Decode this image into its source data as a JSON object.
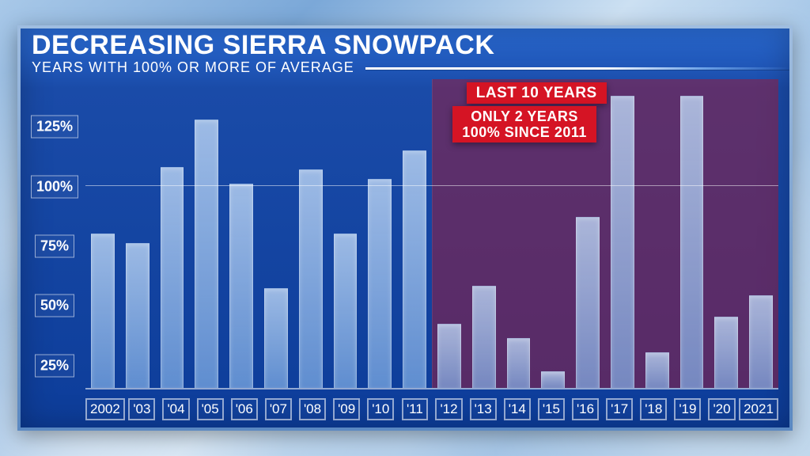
{
  "title": "DECREASING SIERRA SNOWPACK",
  "subtitle": "YEARS WITH 100% OR MORE OF AVERAGE",
  "chart": {
    "type": "bar",
    "ylim": [
      15,
      145
    ],
    "yticks": [
      25,
      50,
      75,
      100,
      125
    ],
    "ytick_labels": [
      "25%",
      "50%",
      "75%",
      "100%",
      "125%"
    ],
    "reference_line": 100,
    "x_labels": [
      "2002",
      "'03",
      "'04",
      "'05",
      "'06",
      "'07",
      "'08",
      "'09",
      "'10",
      "'11",
      "'12",
      "'13",
      "'14",
      "'15",
      "'16",
      "'17",
      "'18",
      "'19",
      "'20",
      "2021"
    ],
    "values": [
      80,
      76,
      108,
      128,
      101,
      57,
      107,
      80,
      103,
      115,
      42,
      58,
      36,
      22,
      87,
      138,
      30,
      138,
      45,
      54
    ],
    "highlight_start_index": 10,
    "bar_color": "rgba(160,200,240,0.75)",
    "highlight_color": "rgba(150,28,60,0.55)",
    "grid_color": "rgba(255,255,255,0.5)",
    "background_gradient": [
      "#2a6bd4",
      "#0d3d9a"
    ],
    "title_fontsize": 34,
    "subtitle_fontsize": 18,
    "ytick_fontsize": 18,
    "xtick_fontsize": 17
  },
  "callouts": {
    "top": "LAST 10 YEARS",
    "bottom_line1": "ONLY 2 YEARS",
    "bottom_line2": "100% SINCE 2011"
  },
  "colors": {
    "callout_bg": "#d51424",
    "text": "#ffffff",
    "frame_light": "#9fbde0",
    "frame_dark": "#5a88c2"
  }
}
